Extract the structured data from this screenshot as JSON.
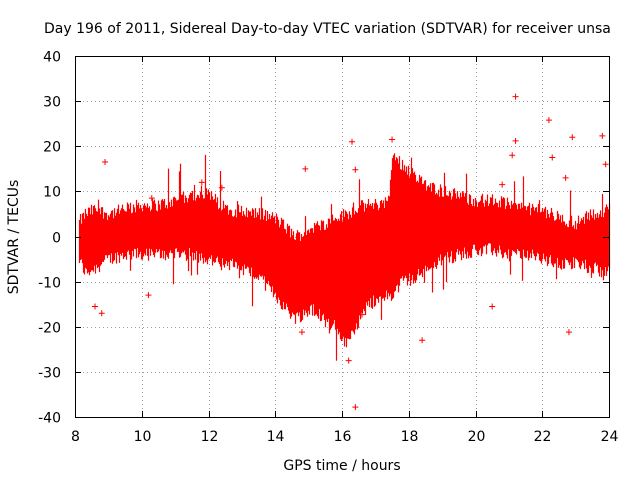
{
  "chart_data": {
    "type": "scatter",
    "title": "Day 196 of 2011, Sidereal Day-to-day VTEC variation (SDTVAR) for receiver unsa",
    "xlabel": "GPS time / hours",
    "ylabel": "SDTVAR / TECUs",
    "xlim": [
      8,
      24
    ],
    "ylim": [
      -40,
      40
    ],
    "xticks": [
      8,
      10,
      12,
      14,
      16,
      18,
      20,
      22,
      24
    ],
    "yticks": [
      -40,
      -30,
      -20,
      -10,
      0,
      10,
      20,
      30,
      40
    ],
    "grid": true,
    "marker": "+",
    "color": "#ff0000",
    "series": [
      {
        "name": "SDTVAR",
        "envelope": {
          "x": [
            8.1,
            8.3,
            8.6,
            9.0,
            9.5,
            10.0,
            10.5,
            11.0,
            11.5,
            12.0,
            12.3,
            12.6,
            13.0,
            13.5,
            14.0,
            14.3,
            14.6,
            14.9,
            15.2,
            15.5,
            15.8,
            16.1,
            16.4,
            16.7,
            17.0,
            17.4,
            17.5,
            17.8,
            18.2,
            18.6,
            19.0,
            19.5,
            20.0,
            20.5,
            21.0,
            21.5,
            22.0,
            22.5,
            23.0,
            23.5,
            24.0
          ],
          "upper": [
            3,
            5,
            6,
            5,
            6,
            7,
            7,
            8,
            9,
            10,
            7,
            6,
            5.5,
            5,
            4,
            2,
            0,
            1,
            2,
            3,
            4,
            5,
            6,
            7,
            7,
            8,
            18,
            16,
            13,
            11,
            10,
            9,
            8,
            8,
            7,
            6,
            6,
            4,
            3,
            5,
            6
          ],
          "lower": [
            -5,
            -8,
            -7,
            -5,
            -4,
            -4,
            -4,
            -4,
            -4,
            -5,
            -6,
            -6,
            -7,
            -9,
            -13,
            -16,
            -18,
            -17,
            -16,
            -19,
            -20,
            -24,
            -20,
            -16,
            -14,
            -13,
            -13,
            -10,
            -9,
            -7,
            -5,
            -4,
            -3,
            -3,
            -4,
            -4,
            -5,
            -6,
            -6,
            -7,
            -8
          ]
        },
        "outliers": [
          {
            "x": 16.4,
            "y": -37.8
          },
          {
            "x": 21.2,
            "y": 31.0
          },
          {
            "x": 22.2,
            "y": 25.8
          },
          {
            "x": 21.2,
            "y": 21.2
          },
          {
            "x": 16.3,
            "y": 21.0
          },
          {
            "x": 22.9,
            "y": 22.0
          },
          {
            "x": 23.8,
            "y": 22.3
          },
          {
            "x": 17.5,
            "y": 21.5
          },
          {
            "x": 20.5,
            "y": -15.5
          },
          {
            "x": 22.8,
            "y": -21.2
          },
          {
            "x": 14.8,
            "y": -21.2
          },
          {
            "x": 18.4,
            "y": -23.0
          },
          {
            "x": 16.6,
            "y": -17.3
          },
          {
            "x": 11.8,
            "y": 12.0
          },
          {
            "x": 12.4,
            "y": 10.8
          },
          {
            "x": 10.3,
            "y": 8.5
          },
          {
            "x": 10.2,
            "y": -13.0
          },
          {
            "x": 8.9,
            "y": 16.5
          },
          {
            "x": 14.9,
            "y": 15.0
          },
          {
            "x": 16.4,
            "y": 14.8
          },
          {
            "x": 21.1,
            "y": 18.0
          },
          {
            "x": 22.7,
            "y": 13.0
          },
          {
            "x": 8.6,
            "y": -15.5
          },
          {
            "x": 8.8,
            "y": -17.0
          },
          {
            "x": 22.3,
            "y": 17.5
          },
          {
            "x": 23.9,
            "y": 16.0
          },
          {
            "x": 16.2,
            "y": -27.5
          },
          {
            "x": 20.8,
            "y": 11.5
          }
        ]
      }
    ]
  }
}
